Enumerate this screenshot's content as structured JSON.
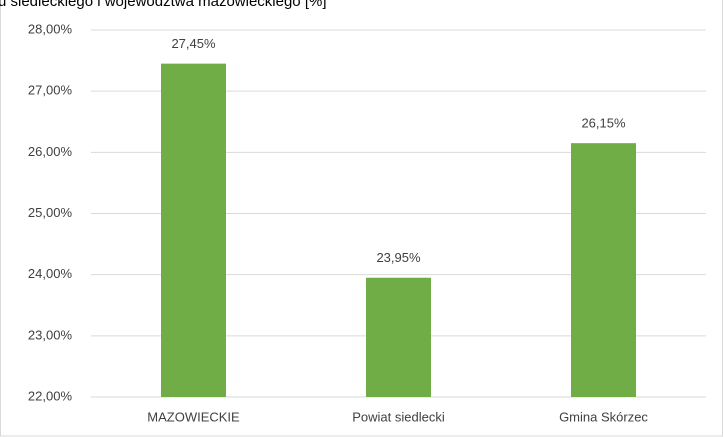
{
  "chart_data": {
    "type": "bar",
    "title": "u siedleckiego i województwa mazowieckiego [%]",
    "categories": [
      "MAZOWIECKIE",
      "Powiat siedlecki",
      "Gmina Skórzec"
    ],
    "values": [
      27.45,
      23.95,
      26.15
    ],
    "value_labels": [
      "27,45%",
      "23,95%",
      "26,15%"
    ],
    "color": "#70ad47",
    "ylim": [
      22,
      28
    ],
    "yticks": [
      {
        "value": 22,
        "label": "22,00%"
      },
      {
        "value": 23,
        "label": "23,00%"
      },
      {
        "value": 24,
        "label": "24,00%"
      },
      {
        "value": 25,
        "label": "25,00%"
      },
      {
        "value": 26,
        "label": "26,00%"
      },
      {
        "value": 27,
        "label": "27,00%"
      },
      {
        "value": 28,
        "label": "28,00%"
      }
    ],
    "grid": true
  }
}
